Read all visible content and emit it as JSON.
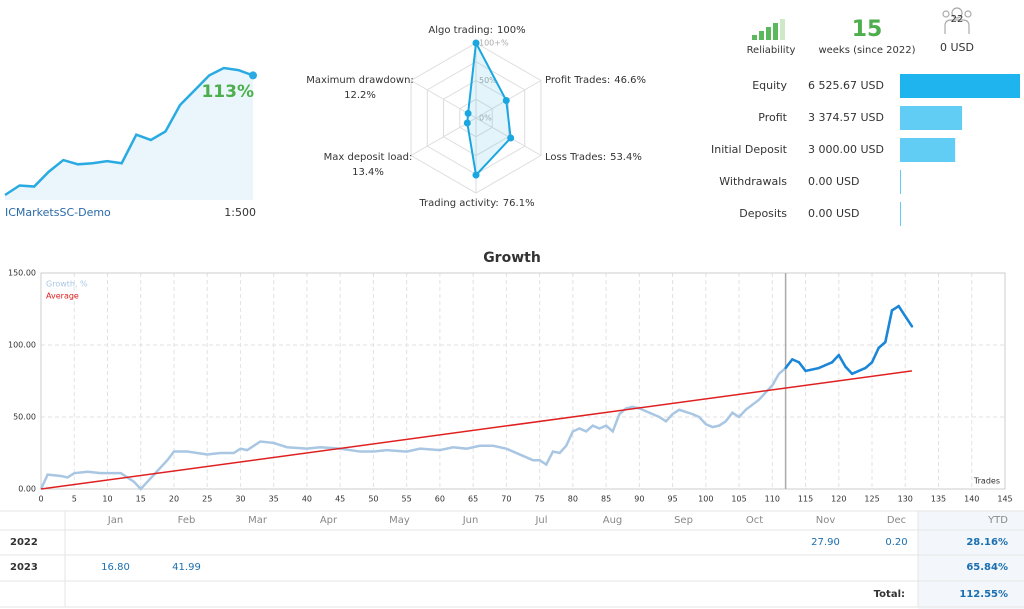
{
  "header": {
    "reliability": "Reliability",
    "weeks": "15",
    "weeks_label": "weeks (since 2022)",
    "subscribers": "22",
    "subscribers_funds": "0 USD"
  },
  "chart_data": [
    {
      "type": "sparkline",
      "values": [
        0,
        9,
        8,
        22,
        33,
        29,
        30,
        32,
        30,
        57,
        52,
        60,
        85,
        99,
        113,
        120,
        118,
        113
      ],
      "value_label": "113%",
      "account": "ICMarketsSC-Demo",
      "leverage": "1:500",
      "color": "#29abe2"
    },
    {
      "type": "radar",
      "categories": [
        "Algo trading:",
        "Profit Trades:",
        "Loss Trades:",
        "Trading activity:",
        "Max deposit load:",
        "Maximum drawdown:"
      ],
      "values": [
        100,
        46.6,
        53.4,
        76.1,
        13.4,
        12.2
      ],
      "value_labels": [
        "100%",
        "46.6%",
        "53.4%",
        "76.1%",
        "13.4%",
        "12.2%"
      ],
      "rlim": [
        0,
        100
      ],
      "rticks": [
        {
          "value": 100,
          "label": "100+%"
        },
        {
          "value": 50,
          "label": "50%"
        },
        {
          "value": 0,
          "label": "0%"
        }
      ],
      "color": "#1aa7e0"
    },
    {
      "type": "hbar",
      "categories": [
        "Equity",
        "Profit",
        "Initial Deposit",
        "Withdrawals",
        "Deposits"
      ],
      "values": [
        6525.67,
        3374.57,
        3000,
        0,
        0
      ],
      "value_labels": [
        "6 525.67 USD",
        "3 374.57 USD",
        "3 000.00 USD",
        "0.00 USD",
        "0.00 USD"
      ],
      "colors": [
        "#1fb4ee",
        "#62cdf4",
        "#62cdf4",
        "#62cdf4",
        "#62cdf4"
      ]
    },
    {
      "type": "line",
      "title": "Growth",
      "xlabel": "Trades",
      "xlim": [
        0,
        145
      ],
      "xticks": [
        0,
        5,
        10,
        15,
        20,
        25,
        30,
        35,
        40,
        45,
        50,
        55,
        60,
        65,
        70,
        75,
        80,
        85,
        90,
        95,
        100,
        105,
        110,
        115,
        120,
        125,
        130,
        135,
        140,
        145
      ],
      "ylim": [
        0,
        150
      ],
      "yticks": [
        {
          "value": 0,
          "label": "0.00"
        },
        {
          "value": 50,
          "label": "50.00"
        },
        {
          "value": 100,
          "label": "100.00"
        },
        {
          "value": 150,
          "label": "150.00"
        }
      ],
      "grid": true,
      "highlight_from": 112,
      "highlight_color": "#1a86d8",
      "series": [
        {
          "name": "Growth, %",
          "color": "#a9c6e3",
          "x": [
            0,
            1,
            3,
            4,
            5,
            7,
            9,
            12,
            13,
            14,
            15,
            16,
            17,
            19,
            20,
            22,
            25,
            27,
            29,
            30,
            31,
            33,
            35,
            37,
            40,
            42,
            45,
            48,
            50,
            52,
            55,
            57,
            60,
            62,
            64,
            66,
            68,
            70,
            72,
            74,
            75,
            76,
            77,
            78,
            79,
            80,
            81,
            82,
            83,
            84,
            85,
            86,
            87,
            88,
            89,
            90,
            92,
            93,
            94,
            95,
            96,
            98,
            99,
            100,
            101,
            102,
            103,
            104,
            105,
            106,
            108,
            109,
            110,
            111,
            112,
            113,
            114,
            115,
            117,
            119,
            120,
            121,
            122,
            124,
            125,
            126,
            127,
            128,
            129,
            131
          ],
          "values": [
            0,
            10,
            9,
            8,
            11,
            12,
            11,
            11,
            8,
            5,
            0,
            5,
            10,
            20,
            26,
            26,
            24,
            25,
            25,
            28,
            27,
            33,
            32,
            29,
            28,
            29,
            28,
            26,
            26,
            27,
            26,
            28,
            27,
            29,
            28,
            30,
            30,
            28,
            24,
            20,
            20,
            17,
            26,
            25,
            30,
            40,
            42,
            40,
            44,
            42,
            44,
            40,
            52,
            56,
            57,
            56,
            52,
            50,
            47,
            52,
            55,
            52,
            50,
            45,
            43,
            44,
            47,
            53,
            50,
            55,
            62,
            67,
            72,
            80,
            84,
            90,
            88,
            82,
            84,
            88,
            93,
            85,
            80,
            84,
            88,
            98,
            102,
            124,
            127,
            113
          ]
        },
        {
          "name": "Average",
          "color": "#e02020",
          "x": [
            0,
            131
          ],
          "values": [
            0,
            82
          ]
        }
      ]
    }
  ],
  "table": {
    "columns": [
      null,
      "Jan",
      "Feb",
      "Mar",
      "Apr",
      "May",
      "Jun",
      "Jul",
      "Aug",
      "Sep",
      "Oct",
      "Nov",
      "Dec",
      "YTD"
    ],
    "rows": [
      [
        "2022",
        null,
        null,
        null,
        null,
        null,
        null,
        null,
        null,
        null,
        null,
        "27.90",
        "0.20",
        "28.16%"
      ],
      [
        "2023",
        "16.80",
        "41.99",
        null,
        null,
        null,
        null,
        null,
        null,
        null,
        null,
        null,
        null,
        "65.84%"
      ]
    ],
    "total_label": "Total:",
    "total": "112.55%"
  }
}
